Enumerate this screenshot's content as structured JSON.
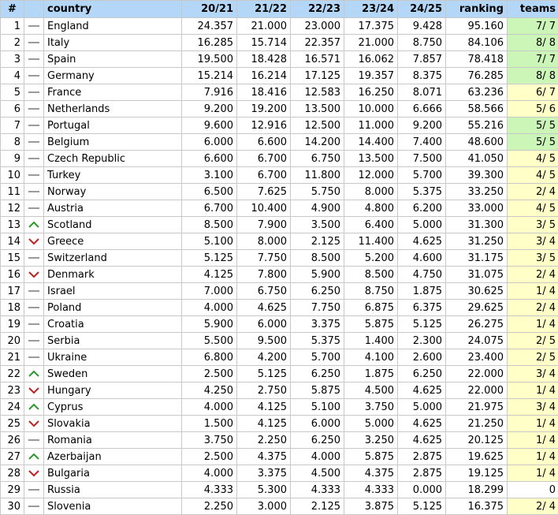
{
  "table": {
    "headers": [
      "#",
      "country",
      "20/21",
      "21/22",
      "22/23",
      "23/24",
      "24/25",
      "ranking",
      "teams"
    ],
    "rows": [
      [
        "1",
        "England",
        "24.357",
        "21.000",
        "23.000",
        "17.375",
        "9.428",
        "95.160",
        "7/ 7"
      ],
      [
        "2",
        "Italy",
        "16.285",
        "15.714",
        "22.357",
        "21.000",
        "8.750",
        "84.106",
        "8/ 8"
      ],
      [
        "3",
        "Spain",
        "19.500",
        "18.428",
        "16.571",
        "16.062",
        "7.857",
        "78.418",
        "7/ 7"
      ],
      [
        "4",
        "Germany",
        "15.214",
        "16.214",
        "17.125",
        "19.357",
        "8.375",
        "76.285",
        "8/ 8"
      ],
      [
        "5",
        "France",
        "7.916",
        "18.416",
        "12.583",
        "16.250",
        "8.071",
        "63.236",
        "6/ 7"
      ],
      [
        "6",
        "Netherlands",
        "9.200",
        "19.200",
        "13.500",
        "10.000",
        "6.666",
        "58.566",
        "5/ 6"
      ],
      [
        "7",
        "Portugal",
        "9.600",
        "12.916",
        "12.500",
        "11.000",
        "9.200",
        "55.216",
        "5/ 5"
      ],
      [
        "8",
        "Belgium",
        "6.000",
        "6.600",
        "14.200",
        "14.400",
        "7.400",
        "48.600",
        "5/ 5"
      ],
      [
        "9",
        "Czech Republic",
        "6.600",
        "6.700",
        "6.750",
        "13.500",
        "7.500",
        "41.050",
        "4/ 5"
      ],
      [
        "10",
        "Turkey",
        "3.100",
        "6.700",
        "11.800",
        "12.000",
        "5.700",
        "39.300",
        "4/ 5"
      ],
      [
        "11",
        "Norway",
        "6.500",
        "7.625",
        "5.750",
        "8.000",
        "5.375",
        "33.250",
        "2/ 4"
      ],
      [
        "12",
        "Austria",
        "6.700",
        "10.400",
        "4.900",
        "4.800",
        "6.200",
        "33.000",
        "4/ 5"
      ],
      [
        "13",
        "Scotland",
        "8.500",
        "7.900",
        "3.500",
        "6.400",
        "5.000",
        "31.300",
        "3/ 5"
      ],
      [
        "14",
        "Greece",
        "5.100",
        "8.000",
        "2.125",
        "11.400",
        "4.625",
        "31.250",
        "3/ 4"
      ],
      [
        "15",
        "Switzerland",
        "5.125",
        "7.750",
        "8.500",
        "5.200",
        "4.600",
        "31.175",
        "3/ 5"
      ],
      [
        "16",
        "Denmark",
        "4.125",
        "7.800",
        "5.900",
        "8.500",
        "4.750",
        "31.075",
        "2/ 4"
      ],
      [
        "17",
        "Israel",
        "7.000",
        "6.750",
        "6.250",
        "8.750",
        "1.875",
        "30.625",
        "1/ 4"
      ],
      [
        "18",
        "Poland",
        "4.000",
        "4.625",
        "7.750",
        "6.875",
        "6.375",
        "29.625",
        "2/ 4"
      ],
      [
        "19",
        "Croatia",
        "5.900",
        "6.000",
        "3.375",
        "5.875",
        "5.125",
        "26.275",
        "1/ 4"
      ],
      [
        "20",
        "Serbia",
        "5.500",
        "9.500",
        "5.375",
        "1.400",
        "2.300",
        "24.075",
        "2/ 5"
      ],
      [
        "21",
        "Ukraine",
        "6.800",
        "4.200",
        "5.700",
        "4.100",
        "2.600",
        "23.400",
        "2/ 5"
      ],
      [
        "22",
        "Sweden",
        "2.500",
        "5.125",
        "6.250",
        "1.875",
        "6.250",
        "22.000",
        "3/ 4"
      ],
      [
        "23",
        "Hungary",
        "4.250",
        "2.750",
        "5.875",
        "4.500",
        "4.625",
        "22.000",
        "1/ 4"
      ],
      [
        "24",
        "Cyprus",
        "4.000",
        "4.125",
        "5.100",
        "3.750",
        "5.000",
        "21.975",
        "3/ 4"
      ],
      [
        "25",
        "Slovakia",
        "1.500",
        "4.125",
        "6.000",
        "5.000",
        "4.625",
        "21.250",
        "1/ 4"
      ],
      [
        "26",
        "Romania",
        "3.750",
        "2.250",
        "6.250",
        "3.250",
        "4.625",
        "20.125",
        "1/ 4"
      ],
      [
        "27",
        "Azerbaijan",
        "2.500",
        "4.375",
        "4.000",
        "5.875",
        "2.875",
        "19.625",
        "1/ 4"
      ],
      [
        "28",
        "Bulgaria",
        "4.000",
        "3.375",
        "4.500",
        "4.375",
        "2.875",
        "19.125",
        "1/ 4"
      ],
      [
        "29",
        "Russia",
        "4.333",
        "5.300",
        "4.333",
        "4.333",
        "0.000",
        "18.299",
        "0"
      ],
      [
        "30",
        "Slovenia",
        "2.250",
        "3.000",
        "2.125",
        "3.875",
        "5.125",
        "16.375",
        "2/ 4"
      ]
    ],
    "trends": [
      "same",
      "same",
      "same",
      "same",
      "same",
      "same",
      "same",
      "same",
      "same",
      "same",
      "same",
      "same",
      "up",
      "down",
      "same",
      "down",
      "same",
      "same",
      "same",
      "same",
      "same",
      "up",
      "down",
      "up",
      "down",
      "same",
      "up",
      "down",
      "same",
      "same"
    ]
  }
}
